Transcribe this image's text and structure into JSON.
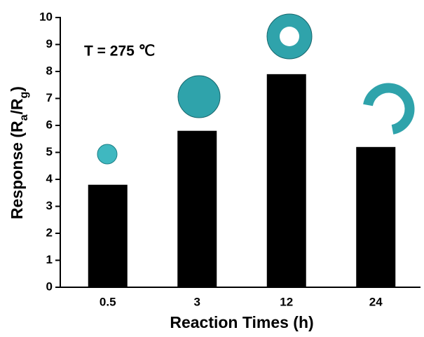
{
  "chart_data": {
    "type": "bar",
    "xlabel": "Reaction Times (h)",
    "ylabel": [
      "Response (R",
      "a",
      "/R",
      "g",
      ")"
    ],
    "annotation": "T = 275 ℃",
    "categories": [
      "0.5",
      "3",
      "12",
      "24"
    ],
    "values": [
      3.8,
      5.8,
      7.9,
      5.2
    ],
    "color": "#000000",
    "annotation_color": "#e8141b",
    "ylim": [
      0,
      10
    ],
    "yticks": [
      0,
      1,
      2,
      3,
      4,
      5,
      6,
      7,
      8,
      9,
      10
    ]
  }
}
